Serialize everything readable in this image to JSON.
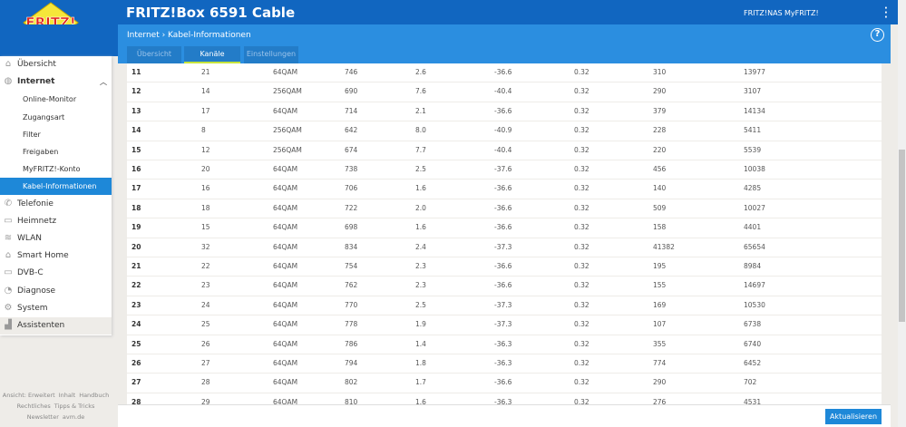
{
  "header": {
    "title": "FRITZ!Box 6591 Cable",
    "logo_text": "FRITZ!",
    "links": [
      "FRITZ!NAS",
      "MyFRITZ!"
    ],
    "breadcrumb": "Internet › Kabel-Informationen",
    "help": "?"
  },
  "tabs": [
    {
      "label": "Übersicht",
      "active": false
    },
    {
      "label": "Kanäle",
      "active": true
    },
    {
      "label": "Einstellungen",
      "active": false
    }
  ],
  "sidebar": {
    "items": [
      {
        "label": "Übersicht",
        "icon": "home-icon",
        "level": 0
      },
      {
        "label": "Internet",
        "icon": "globe-icon",
        "level": 0,
        "expanded": true
      },
      {
        "label": "Online-Monitor",
        "level": 1
      },
      {
        "label": "Zugangsart",
        "level": 1
      },
      {
        "label": "Filter",
        "level": 1
      },
      {
        "label": "Freigaben",
        "level": 1
      },
      {
        "label": "MyFRITZ!-Konto",
        "level": 1
      },
      {
        "label": "Kabel-Informationen",
        "level": 1,
        "selected": true
      },
      {
        "label": "Telefonie",
        "icon": "phone-icon",
        "level": 0
      },
      {
        "label": "Heimnetz",
        "icon": "network-icon",
        "level": 0
      },
      {
        "label": "WLAN",
        "icon": "wifi-icon",
        "level": 0
      },
      {
        "label": "Smart Home",
        "icon": "smart-home-icon",
        "level": 0
      },
      {
        "label": "DVB-C",
        "icon": "tv-icon",
        "level": 0
      },
      {
        "label": "Diagnose",
        "icon": "diagnose-icon",
        "level": 0
      },
      {
        "label": "System",
        "icon": "gear-icon",
        "level": 0
      },
      {
        "label": "Assistenten",
        "icon": "wizard-icon",
        "level": 0
      }
    ]
  },
  "footer_links": [
    "Ansicht: Erweitert",
    "Inhalt",
    "Handbuch",
    "Rechtliches",
    "Tipps & Tricks",
    "Newsletter",
    "avm.de"
  ],
  "table": {
    "rows": [
      [
        "11",
        "21",
        "64QAM",
        "746",
        "2.6",
        "-36.6",
        "0.32",
        "310",
        "13977"
      ],
      [
        "12",
        "14",
        "256QAM",
        "690",
        "7.6",
        "-40.4",
        "0.32",
        "290",
        "3107"
      ],
      [
        "13",
        "17",
        "64QAM",
        "714",
        "2.1",
        "-36.6",
        "0.32",
        "379",
        "14134"
      ],
      [
        "14",
        "8",
        "256QAM",
        "642",
        "8.0",
        "-40.9",
        "0.32",
        "228",
        "5411"
      ],
      [
        "15",
        "12",
        "256QAM",
        "674",
        "7.7",
        "-40.4",
        "0.32",
        "220",
        "5539"
      ],
      [
        "16",
        "20",
        "64QAM",
        "738",
        "2.5",
        "-37.6",
        "0.32",
        "456",
        "10038"
      ],
      [
        "17",
        "16",
        "64QAM",
        "706",
        "1.6",
        "-36.6",
        "0.32",
        "140",
        "4285"
      ],
      [
        "18",
        "18",
        "64QAM",
        "722",
        "2.0",
        "-36.6",
        "0.32",
        "509",
        "10027"
      ],
      [
        "19",
        "15",
        "64QAM",
        "698",
        "1.6",
        "-36.6",
        "0.32",
        "158",
        "4401"
      ],
      [
        "20",
        "32",
        "64QAM",
        "834",
        "2.4",
        "-37.3",
        "0.32",
        "41382",
        "65654"
      ],
      [
        "21",
        "22",
        "64QAM",
        "754",
        "2.3",
        "-36.6",
        "0.32",
        "195",
        "8984"
      ],
      [
        "22",
        "23",
        "64QAM",
        "762",
        "2.3",
        "-36.6",
        "0.32",
        "155",
        "14697"
      ],
      [
        "23",
        "24",
        "64QAM",
        "770",
        "2.5",
        "-37.3",
        "0.32",
        "169",
        "10530"
      ],
      [
        "24",
        "25",
        "64QAM",
        "778",
        "1.9",
        "-37.3",
        "0.32",
        "107",
        "6738"
      ],
      [
        "25",
        "26",
        "64QAM",
        "786",
        "1.4",
        "-36.3",
        "0.32",
        "355",
        "6740"
      ],
      [
        "26",
        "27",
        "64QAM",
        "794",
        "1.8",
        "-36.3",
        "0.32",
        "774",
        "6452"
      ],
      [
        "27",
        "28",
        "64QAM",
        "802",
        "1.7",
        "-36.6",
        "0.32",
        "290",
        "702"
      ],
      [
        "28",
        "29",
        "64QAM",
        "810",
        "1.6",
        "-36.3",
        "0.32",
        "276",
        "4531"
      ]
    ]
  },
  "buttons": {
    "update": "Aktualisieren"
  },
  "colors": {
    "brand_blue": "#1166c0",
    "accent_blue": "#1e88d8",
    "tab_underline": "#c6e33c"
  }
}
